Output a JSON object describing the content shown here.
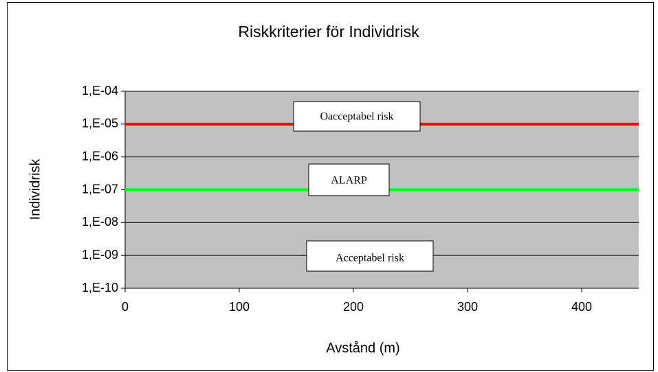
{
  "chart_data": {
    "type": "line",
    "title": "Riskkriterier för Individrisk",
    "xlabel": "Avstånd (m)",
    "ylabel": "Individrisk",
    "xlim": [
      0,
      450
    ],
    "xticks": [
      0,
      100,
      200,
      300,
      400
    ],
    "ylim": [
      1e-10,
      0.0001
    ],
    "yscale": "log",
    "yticks": [
      {
        "value": 1e-10,
        "label": "1,E-10"
      },
      {
        "value": 1e-09,
        "label": "1,E-09"
      },
      {
        "value": 1e-08,
        "label": "1,E-08"
      },
      {
        "value": 1e-07,
        "label": "1,E-07"
      },
      {
        "value": 1e-06,
        "label": "1,E-06"
      },
      {
        "value": 1e-05,
        "label": "1,E-05"
      },
      {
        "value": 0.0001,
        "label": "1,E-04"
      }
    ],
    "grid": true,
    "series": [
      {
        "color": "#ff0000",
        "x": [
          0,
          450
        ],
        "values": [
          1e-05,
          1e-05
        ]
      },
      {
        "color": "#00ff00",
        "x": [
          0,
          450
        ],
        "values": [
          1e-07,
          1e-07
        ]
      }
    ],
    "annotations": [
      "Oacceptabel risk",
      "ALARP",
      "Acceptabel risk"
    ]
  }
}
